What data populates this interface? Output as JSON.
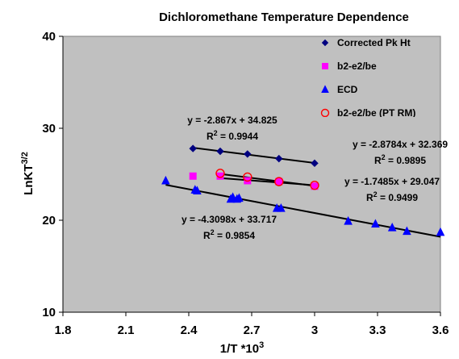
{
  "chart_data": {
    "type": "scatter",
    "title": "Dichloromethane Temperature Dependence",
    "xlabel_main": "1/T *10",
    "xlabel_sup": "3",
    "ylabel_main": "LnKT",
    "ylabel_sup": "3/2",
    "xlim": [
      1.8,
      3.6
    ],
    "ylim": [
      10,
      40
    ],
    "xticks": [
      1.8,
      2.1,
      2.4,
      2.7,
      3.0,
      3.3,
      3.6
    ],
    "xtick_labels": [
      "1.8",
      "2.1",
      "2.4",
      "2.7",
      "3",
      "3.3",
      "3.6"
    ],
    "yticks": [
      10,
      20,
      30,
      40
    ],
    "ytick_labels": [
      "10",
      "20",
      "30",
      "40"
    ],
    "grid": false,
    "plot_background": "#c0c0c0",
    "legend_position": "top-right",
    "series": [
      {
        "name": "Corrected Pk Ht",
        "marker": "diamond",
        "color": "#000080",
        "fill": "#000080",
        "x": [
          2.42,
          2.55,
          2.68,
          2.83,
          3.0
        ],
        "y": [
          27.8,
          27.5,
          27.2,
          26.7,
          26.2
        ],
        "fit": {
          "slope": -2.867,
          "intercept": 34.825,
          "x_range": [
            2.42,
            3.0
          ]
        },
        "equation": "y = -2.867x + 34.825",
        "r2_label": "R",
        "r2_value": " = 0.9944"
      },
      {
        "name": "b2-e2/be",
        "marker": "square",
        "color": "#ff00ff",
        "fill": "#ff00ff",
        "x": [
          2.42,
          2.55,
          2.68,
          2.83,
          3.0
        ],
        "y": [
          24.8,
          24.8,
          24.3,
          24.2,
          23.7
        ],
        "fit": {
          "slope": -1.7485,
          "intercept": 29.047,
          "x_range": [
            2.55,
            3.0
          ]
        },
        "equation": "y = -1.7485x + 29.047",
        "r2_label": "R",
        "r2_value": " = 0.9499"
      },
      {
        "name": "ECD",
        "marker": "triangle",
        "color": "#0000ff",
        "fill": "#0000ff",
        "x": [
          2.29,
          2.43,
          2.44,
          2.6,
          2.61,
          2.63,
          2.64,
          2.82,
          2.84,
          3.16,
          3.29,
          3.37,
          3.44,
          3.6
        ],
        "y": [
          24.3,
          23.3,
          23.2,
          22.3,
          22.5,
          22.3,
          22.4,
          21.3,
          21.3,
          19.9,
          19.6,
          19.2,
          18.8,
          18.7
        ],
        "fit": {
          "slope": -4.3098,
          "intercept": 33.717,
          "x_range": [
            2.29,
            3.6
          ]
        },
        "equation": "y = -4.3098x + 33.717",
        "r2_label": "R",
        "r2_value": " = 0.9854"
      },
      {
        "name": "b2-e2/be (PT RM)",
        "marker": "circle",
        "color": "#ff0000",
        "fill": "none",
        "x": [
          2.55,
          2.68,
          2.83,
          3.0
        ],
        "y": [
          25.1,
          24.7,
          24.2,
          23.8
        ],
        "fit": {
          "slope": -2.8784,
          "intercept": 32.369,
          "x_range": [
            2.55,
            3.0
          ]
        },
        "equation": "y = -2.8784x + 32.369",
        "r2_label": "R",
        "r2_value": " = 0.9895"
      }
    ],
    "r2_sup": "2"
  }
}
